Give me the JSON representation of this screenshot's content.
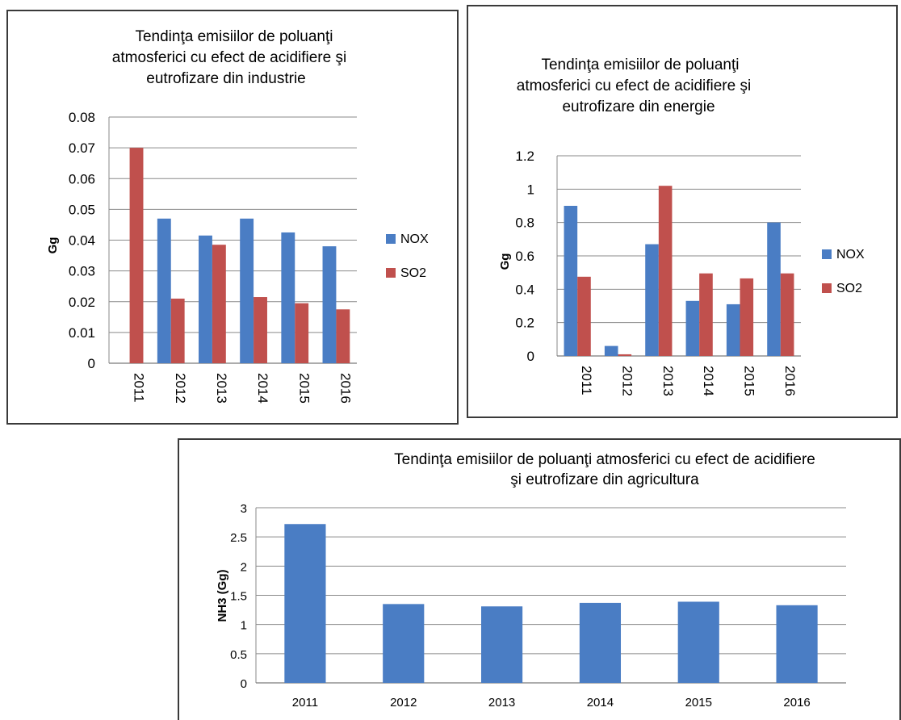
{
  "chart_data": [
    {
      "type": "bar",
      "title": [
        "Tendinţa emisiilor de poluanţi",
        "atmosferici cu efect de acidifiere şi",
        "eutrofizare din industrie"
      ],
      "ylabel": "Gg",
      "ylim": [
        0,
        0.08
      ],
      "yticks": [
        "0",
        "0.01",
        "0.02",
        "0.03",
        "0.04",
        "0.05",
        "0.06",
        "0.07",
        "0.08"
      ],
      "categories": [
        "2011",
        "2012",
        "2013",
        "2014",
        "2015",
        "2016"
      ],
      "series": [
        {
          "name": "NOX",
          "color": "#4a7dc4",
          "values": [
            0,
            0.047,
            0.0415,
            0.047,
            0.0425,
            0.038
          ]
        },
        {
          "name": "SO2",
          "color": "#c0504d",
          "values": [
            0.07,
            0.021,
            0.0385,
            0.0215,
            0.0195,
            0.0175
          ]
        }
      ],
      "grid": true,
      "legend": "right"
    },
    {
      "type": "bar",
      "title": [
        "Tendinţa emisiilor de poluanţi",
        "atmosferici cu efect de acidifiere şi",
        "eutrofizare din energie"
      ],
      "ylabel": "Gg",
      "ylim": [
        0,
        1.2
      ],
      "yticks": [
        "0",
        "0.2",
        "0.4",
        "0.6",
        "0.8",
        "1",
        "1.2"
      ],
      "categories": [
        "2011",
        "2012",
        "2013",
        "2014",
        "2015",
        "2016"
      ],
      "series": [
        {
          "name": "NOX",
          "color": "#4a7dc4",
          "values": [
            0.9,
            0.06,
            0.67,
            0.33,
            0.31,
            0.8
          ]
        },
        {
          "name": "SO2",
          "color": "#c0504d",
          "values": [
            0.475,
            0.01,
            1.02,
            0.495,
            0.465,
            0.495
          ]
        }
      ],
      "grid": true,
      "legend": "right"
    },
    {
      "type": "bar",
      "title": [
        "Tendinţa emisiilor de poluanţi atmosferici cu efect de acidifiere",
        "şi eutrofizare din agricultura"
      ],
      "ylabel": "NH3 (Gg)",
      "ylim": [
        0,
        3
      ],
      "yticks": [
        "0",
        "0.5",
        "1",
        "1.5",
        "2",
        "2.5",
        "3"
      ],
      "categories": [
        "2011",
        "2012",
        "2013",
        "2014",
        "2015",
        "2016"
      ],
      "series": [
        {
          "color": "#4a7dc4",
          "values": [
            2.72,
            1.35,
            1.31,
            1.37,
            1.39,
            1.33
          ]
        }
      ],
      "grid": true,
      "legend": "none"
    }
  ]
}
